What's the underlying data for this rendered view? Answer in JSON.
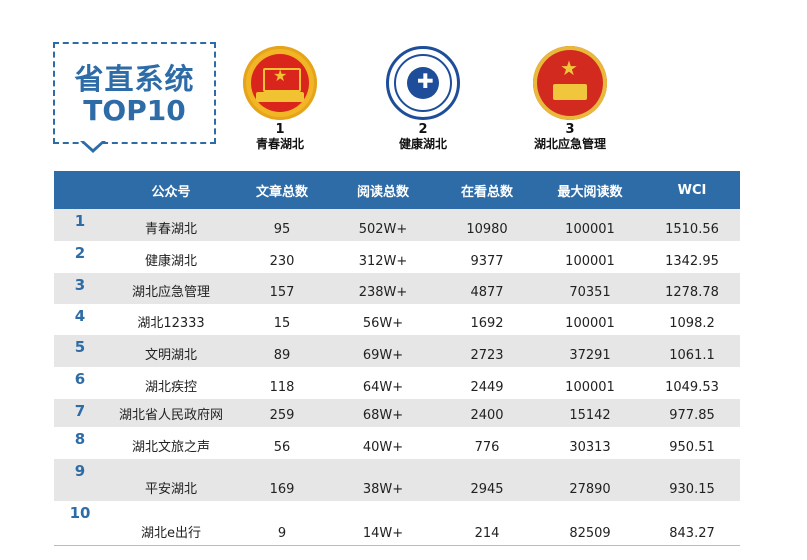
{
  "title": {
    "line1": "省直系统",
    "line2": "TOP10"
  },
  "podium": [
    {
      "rank": "1",
      "name": "青春湖北",
      "logo": "communist-youth-league-emblem"
    },
    {
      "rank": "2",
      "name": "健康湖北",
      "logo": "health-committee-emblem"
    },
    {
      "rank": "3",
      "name": "湖北应急管理",
      "logo": "national-emblem"
    }
  ],
  "table": {
    "columns": [
      "",
      "公众号",
      "文章总数",
      "阅读总数",
      "在看总数",
      "最大阅读数",
      "WCI"
    ],
    "rows": [
      {
        "rank": "1",
        "name": "青春湖北",
        "articles": "95",
        "reads": "502W+",
        "likes": "10980",
        "max_reads": "100001",
        "wci": "1510.56"
      },
      {
        "rank": "2",
        "name": "健康湖北",
        "articles": "230",
        "reads": "312W+",
        "likes": "9377",
        "max_reads": "100001",
        "wci": "1342.95"
      },
      {
        "rank": "3",
        "name": "湖北应急管理",
        "articles": "157",
        "reads": "238W+",
        "likes": "4877",
        "max_reads": "70351",
        "wci": "1278.78"
      },
      {
        "rank": "4",
        "name": "湖北12333",
        "articles": "15",
        "reads": "56W+",
        "likes": "1692",
        "max_reads": "100001",
        "wci": "1098.2"
      },
      {
        "rank": "5",
        "name": "文明湖北",
        "articles": "89",
        "reads": "69W+",
        "likes": "2723",
        "max_reads": "37291",
        "wci": "1061.1"
      },
      {
        "rank": "6",
        "name": "湖北疾控",
        "articles": "118",
        "reads": "64W+",
        "likes": "2449",
        "max_reads": "100001",
        "wci": "1049.53"
      },
      {
        "rank": "7",
        "name": "湖北省人民政府网",
        "articles": "259",
        "reads": "68W+",
        "likes": "2400",
        "max_reads": "15142",
        "wci": "977.85"
      },
      {
        "rank": "8",
        "name": "湖北文旅之声",
        "articles": "56",
        "reads": "40W+",
        "likes": "776",
        "max_reads": "30313",
        "wci": "950.51"
      },
      {
        "rank": "9",
        "name": "平安湖北",
        "articles": "169",
        "reads": "38W+",
        "likes": "2945",
        "max_reads": "27890",
        "wci": "930.15"
      },
      {
        "rank": "10",
        "name": "湖北e出行",
        "articles": "9",
        "reads": "14W+",
        "likes": "214",
        "max_reads": "82509",
        "wci": "843.27"
      }
    ]
  },
  "colors": {
    "accent": "#2e6ca8",
    "stripe": "#e6e6e6"
  }
}
